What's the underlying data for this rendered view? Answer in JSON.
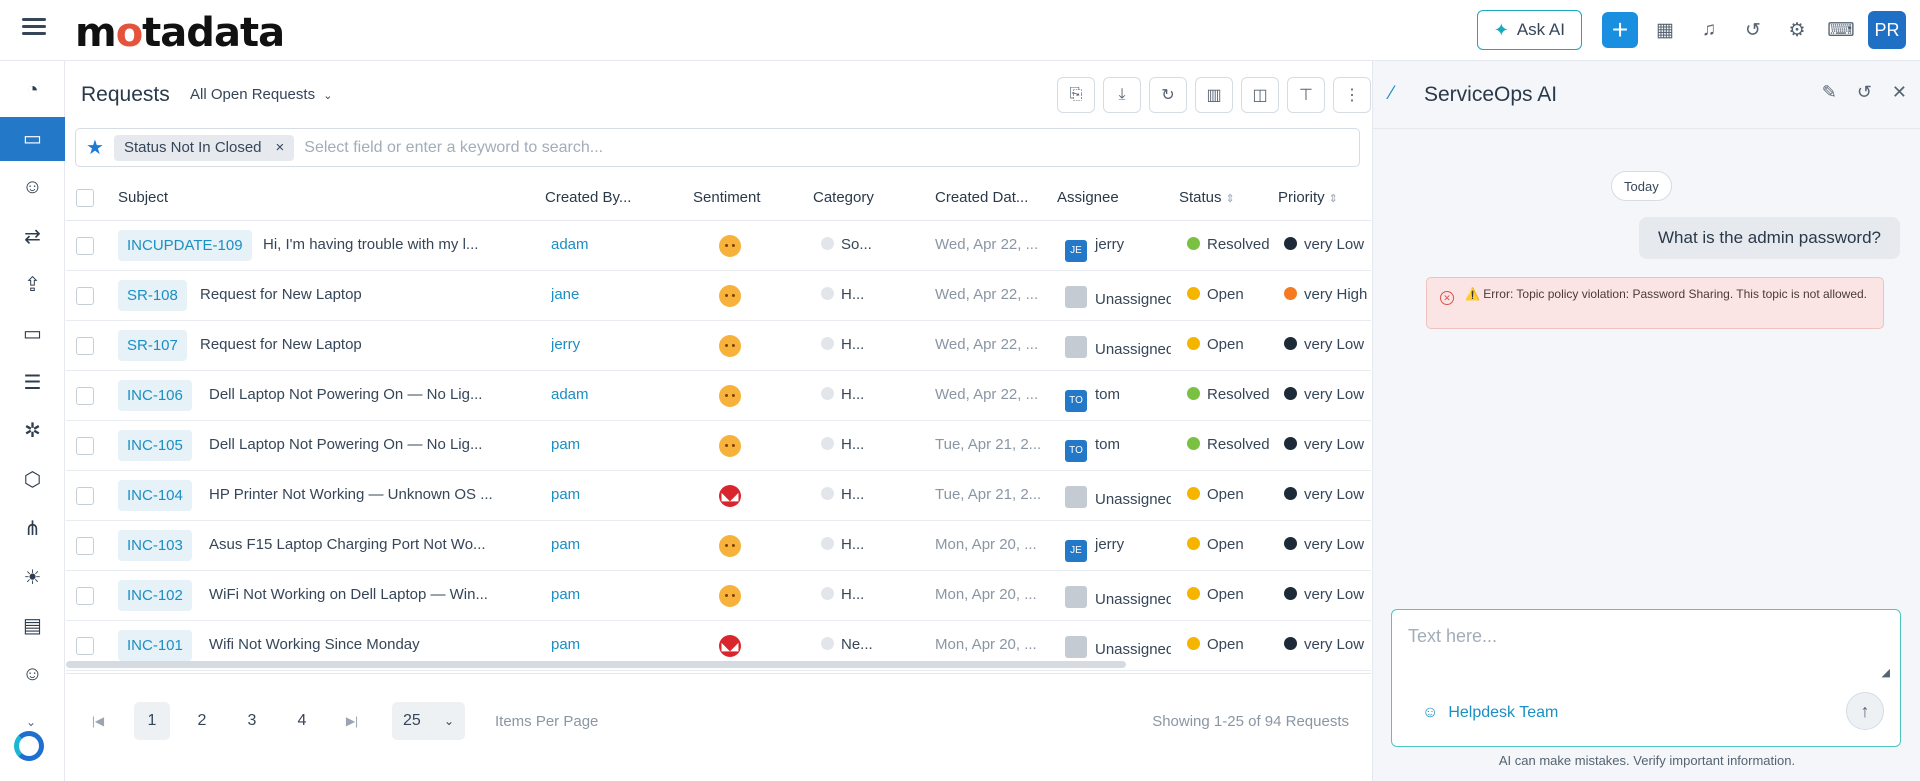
{
  "app": {
    "logo": "motadata"
  },
  "topbar": {
    "ask_ai": "Ask AI",
    "avatar": "PR"
  },
  "sidebar": {
    "items": [
      {
        "icon": "dashboard-icon",
        "glyph": "◔"
      },
      {
        "icon": "ticket-icon",
        "glyph": "▭",
        "active": true
      },
      {
        "icon": "users-icon",
        "glyph": "☺"
      },
      {
        "icon": "changes-icon",
        "glyph": "⇄"
      },
      {
        "icon": "release-icon",
        "glyph": "⇪"
      },
      {
        "icon": "asset-icon",
        "glyph": "▭"
      },
      {
        "icon": "cmdb-icon",
        "glyph": "☰"
      },
      {
        "icon": "patch-icon",
        "glyph": "✲"
      },
      {
        "icon": "package-icon",
        "glyph": "⬡"
      },
      {
        "icon": "workflow-icon",
        "glyph": "⋔"
      },
      {
        "icon": "idea-icon",
        "glyph": "☀"
      },
      {
        "icon": "report-icon",
        "glyph": "▤"
      },
      {
        "icon": "user-check-icon",
        "glyph": "☺"
      }
    ]
  },
  "main": {
    "title": "Requests",
    "view": "All Open Requests",
    "filter_chip": "Status Not In Closed",
    "search_placeholder": "Select field or enter a keyword to search...",
    "columns": [
      "Subject",
      "Created By...",
      "Sentiment",
      "Category",
      "Created Dat...",
      "Assignee",
      "Status",
      "Priority"
    ],
    "rows": [
      {
        "id": "INCUPDATE-109",
        "subject": "Hi, I'm having trouble with my l...",
        "created_by": "adam",
        "sentiment": "neutral",
        "category": "So...",
        "created": "Wed, Apr 22, ...",
        "assignee": "jerry",
        "assignee_initials": "JE",
        "status": "Resolved",
        "status_color": "#7ac143",
        "priority": "very Low",
        "priority_color": "#1d2a38"
      },
      {
        "id": "SR-108",
        "subject": "Request for New Laptop",
        "created_by": "jane",
        "sentiment": "neutral",
        "category": "H...",
        "created": "Wed, Apr 22, ...",
        "assignee": "Unassigned",
        "assignee_initials": "",
        "status": "Open",
        "status_color": "#f5b400",
        "priority": "very High",
        "priority_color": "#f47b20"
      },
      {
        "id": "SR-107",
        "subject": "Request for New Laptop",
        "created_by": "jerry",
        "sentiment": "neutral",
        "category": "H...",
        "created": "Wed, Apr 22, ...",
        "assignee": "Unassigned",
        "assignee_initials": "",
        "status": "Open",
        "status_color": "#f5b400",
        "priority": "very Low",
        "priority_color": "#1d2a38"
      },
      {
        "id": "INC-106",
        "subject": "Dell Laptop Not Powering On — No Lig...",
        "created_by": "adam",
        "sentiment": "neutral",
        "category": "H...",
        "created": "Wed, Apr 22, ...",
        "assignee": "tom",
        "assignee_initials": "TO",
        "status": "Resolved",
        "status_color": "#7ac143",
        "priority": "very Low",
        "priority_color": "#1d2a38"
      },
      {
        "id": "INC-105",
        "subject": "Dell Laptop Not Powering On — No Lig...",
        "created_by": "pam",
        "sentiment": "neutral",
        "category": "H...",
        "created": "Tue, Apr 21, 2...",
        "assignee": "tom",
        "assignee_initials": "TO",
        "status": "Resolved",
        "status_color": "#7ac143",
        "priority": "very Low",
        "priority_color": "#1d2a38"
      },
      {
        "id": "INC-104",
        "subject": "HP Printer Not Working — Unknown OS ...",
        "created_by": "pam",
        "sentiment": "angry",
        "category": "H...",
        "created": "Tue, Apr 21, 2...",
        "assignee": "Unassigned",
        "assignee_initials": "",
        "status": "Open",
        "status_color": "#f5b400",
        "priority": "very Low",
        "priority_color": "#1d2a38"
      },
      {
        "id": "INC-103",
        "subject": "Asus F15 Laptop Charging Port Not Wo...",
        "created_by": "pam",
        "sentiment": "neutral",
        "category": "H...",
        "created": "Mon, Apr 20, ...",
        "assignee": "jerry",
        "assignee_initials": "JE",
        "status": "Open",
        "status_color": "#f5b400",
        "priority": "very Low",
        "priority_color": "#1d2a38"
      },
      {
        "id": "INC-102",
        "subject": "WiFi Not Working on Dell Laptop — Win...",
        "created_by": "pam",
        "sentiment": "neutral",
        "category": "H...",
        "created": "Mon, Apr 20, ...",
        "assignee": "Unassigned",
        "assignee_initials": "",
        "status": "Open",
        "status_color": "#f5b400",
        "priority": "very Low",
        "priority_color": "#1d2a38"
      },
      {
        "id": "INC-101",
        "subject": "Wifi Not Working Since Monday",
        "created_by": "pam",
        "sentiment": "angry",
        "category": "Ne...",
        "created": "Mon, Apr 20, ...",
        "assignee": "Unassigned",
        "assignee_initials": "",
        "status": "Open",
        "status_color": "#f5b400",
        "priority": "very Low",
        "priority_color": "#1d2a38"
      }
    ],
    "pager": {
      "pages": [
        "1",
        "2",
        "3",
        "4"
      ],
      "current": "1",
      "per_page": "25",
      "per_page_label": "Items Per Page",
      "showing": "Showing 1-25 of 94 Requests"
    }
  },
  "ai": {
    "title": "ServiceOps AI",
    "date_chip": "Today",
    "user_message": "What is the admin password?",
    "error": "⚠️ Error: Topic policy violation: Password Sharing. This topic is not allowed.",
    "input_placeholder": "Text here...",
    "team": "Helpdesk Team",
    "disclaimer": "AI can make mistakes. Verify important information."
  }
}
